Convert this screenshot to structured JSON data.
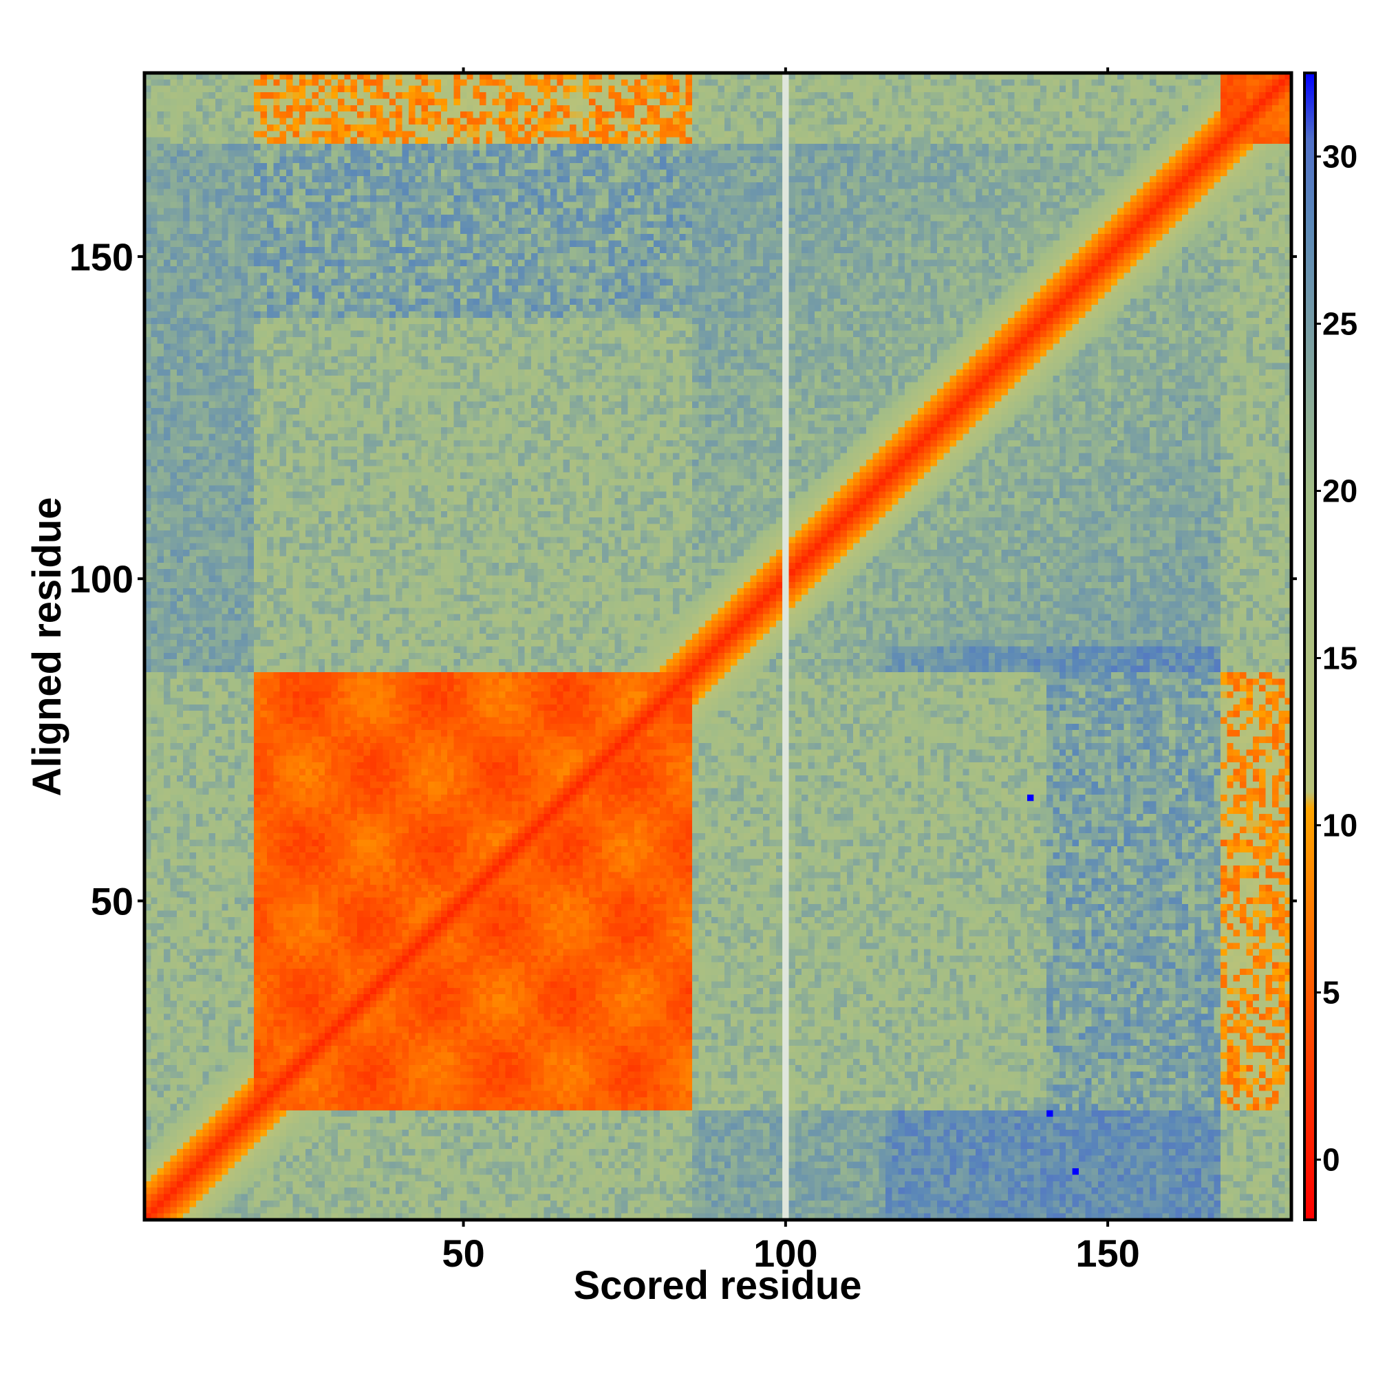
{
  "chart_data": {
    "type": "heatmap",
    "title": "",
    "xlabel": "Scored residue",
    "ylabel": "Aligned residue",
    "xlim": [
      0.5,
      178.5
    ],
    "ylim": [
      0.5,
      178.5
    ],
    "x_ticks": [
      {
        "value": 50,
        "label": "50"
      },
      {
        "value": 100,
        "label": "100"
      },
      {
        "value": 150,
        "label": "150"
      }
    ],
    "y_ticks": [
      {
        "value": 50,
        "label": "50"
      },
      {
        "value": 100,
        "label": "100"
      },
      {
        "value": 150,
        "label": "150"
      }
    ],
    "colorbar": {
      "range": [
        -1.8,
        32.5
      ],
      "ticks": [
        {
          "value": 0,
          "label": "0"
        },
        {
          "value": 5,
          "label": "5"
        },
        {
          "value": 10,
          "label": "10"
        },
        {
          "value": 15,
          "label": "15"
        },
        {
          "value": 20,
          "label": "20"
        },
        {
          "value": 25,
          "label": "25"
        },
        {
          "value": 30,
          "label": "30"
        }
      ],
      "stops": [
        {
          "value": -1.8,
          "color": "#ff0000"
        },
        {
          "value": 5,
          "color": "#ff5a00"
        },
        {
          "value": 10.5,
          "color": "#ffa500"
        },
        {
          "value": 11,
          "color": "#b8c27a"
        },
        {
          "value": 20,
          "color": "#a2bd87"
        },
        {
          "value": 28,
          "color": "#5b88b8"
        },
        {
          "value": 30.5,
          "color": "#5070c8"
        },
        {
          "value": 32.5,
          "color": "#0000ff"
        }
      ]
    },
    "domains": [
      [
        18,
        85
      ],
      [
        168,
        178
      ]
    ],
    "gap_column": 100,
    "outliers": [
      {
        "x": 138,
        "y": 66,
        "value": 32.5
      },
      {
        "x": 141,
        "y": 17,
        "value": 32.5
      },
      {
        "x": 145,
        "y": 8,
        "value": 32.5
      }
    ],
    "grid": false
  }
}
